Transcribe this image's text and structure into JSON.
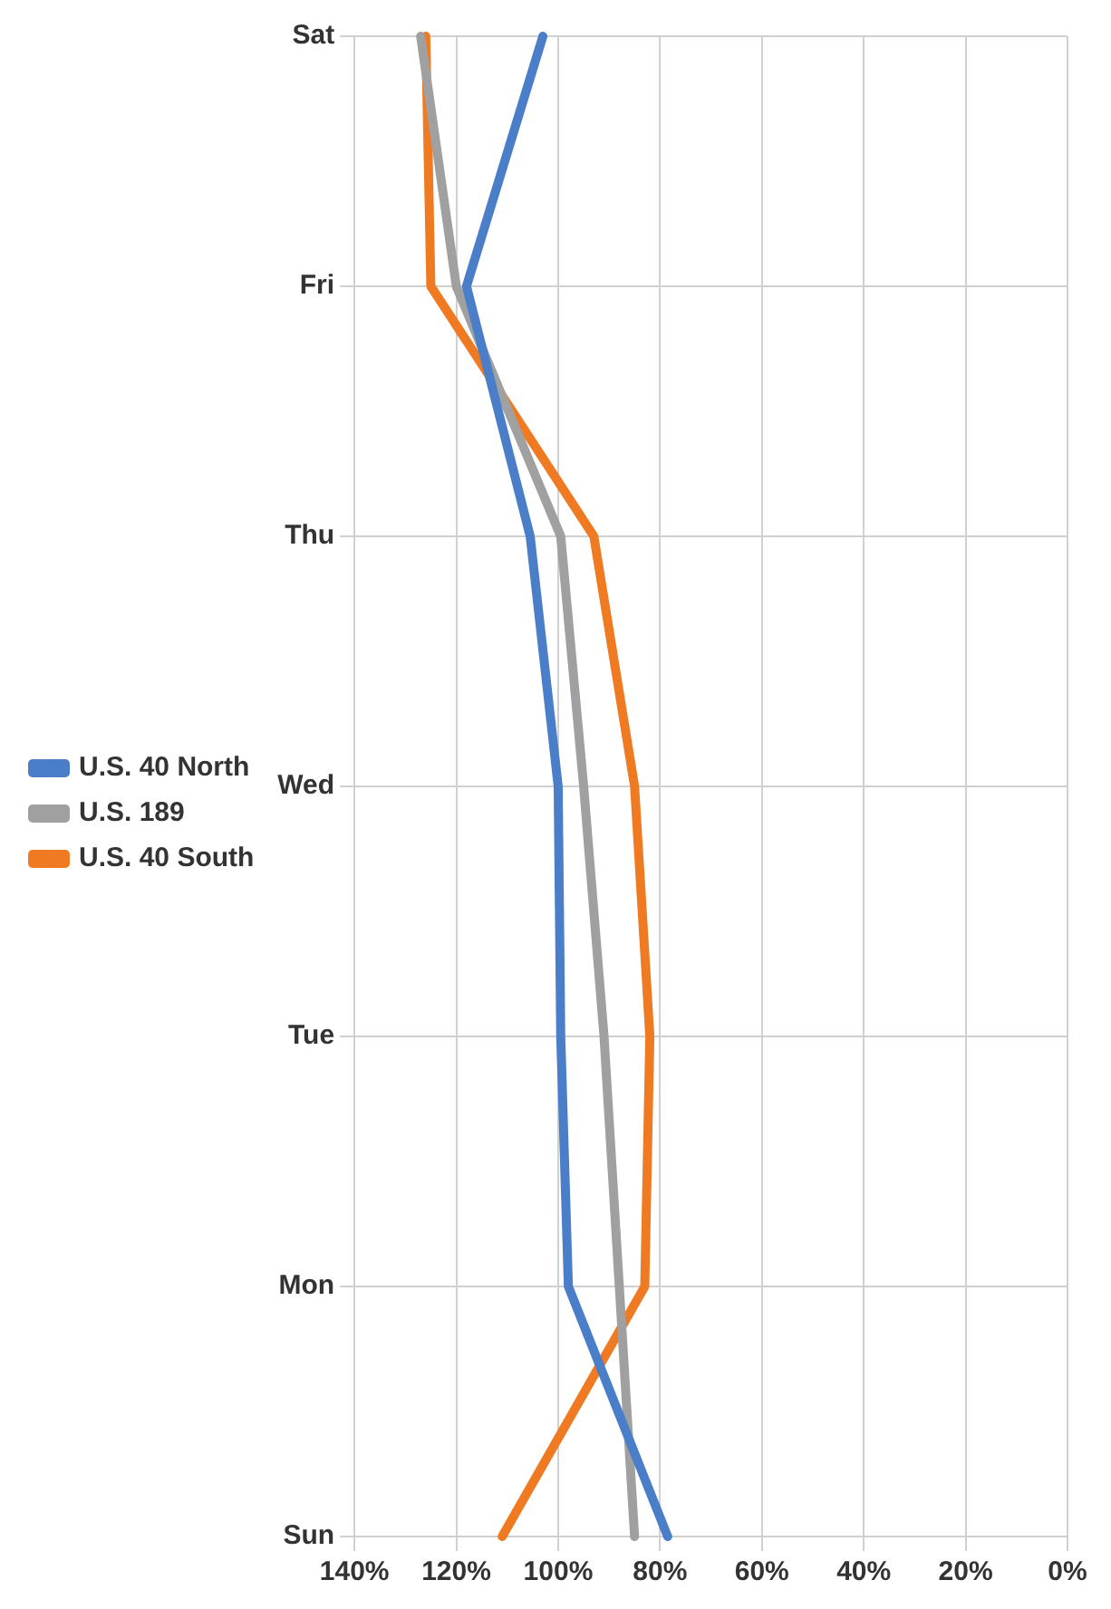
{
  "chart_data": {
    "type": "line",
    "orientation": "horizontal",
    "categories": [
      "Sat",
      "Fri",
      "Thu",
      "Wed",
      "Tue",
      "Mon",
      "Sun"
    ],
    "series": [
      {
        "name": "U.S. 40 North",
        "color": "#4a7ec9",
        "values": [
          103,
          118,
          105.5,
          100,
          99.5,
          98,
          78.5
        ]
      },
      {
        "name": "U.S. 189",
        "color": "#a0a0a0",
        "values": [
          127,
          120,
          99.5,
          95,
          91,
          88,
          85
        ]
      },
      {
        "name": "U.S. 40 South",
        "color": "#f07a22",
        "values": [
          126,
          125,
          93,
          85,
          82,
          83,
          111
        ]
      }
    ],
    "xlim": [
      140,
      0
    ],
    "xticks": [
      {
        "value": 140,
        "label": "140%"
      },
      {
        "value": 120,
        "label": "120%"
      },
      {
        "value": 100,
        "label": "100%"
      },
      {
        "value": 80,
        "label": "80%"
      },
      {
        "value": 60,
        "label": "60%"
      },
      {
        "value": 40,
        "label": "40%"
      },
      {
        "value": 20,
        "label": "20%"
      },
      {
        "value": 0,
        "label": "0%"
      }
    ],
    "grid": true,
    "legend": "left",
    "marker": "none",
    "line_style": "solid"
  }
}
